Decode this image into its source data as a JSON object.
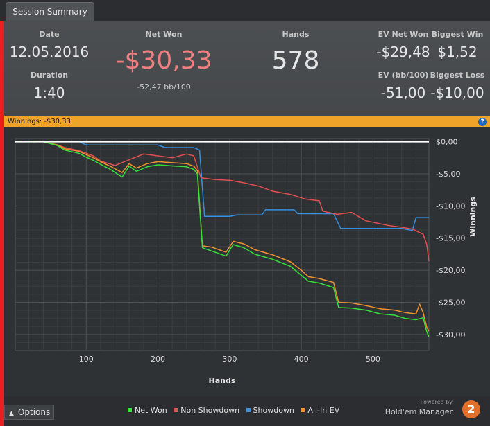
{
  "tab": {
    "label": "Session Summary"
  },
  "summary": {
    "date_label": "Date",
    "date": "12.05.2016",
    "duration_label": "Duration",
    "duration": "1:40",
    "net_won_label": "Net Won",
    "net_won": "-$30,33",
    "bb100": "-52,47 bb/100",
    "hands_label": "Hands",
    "hands": "578",
    "ev_net_won_label": "EV Net Won",
    "ev_net_won": "-$29,48",
    "ev_bb100_label": "EV (bb/100)",
    "ev_bb100": "-51,00",
    "biggest_win_label": "Biggest Win",
    "biggest_win": "$1,52",
    "biggest_loss_label": "Biggest Loss",
    "biggest_loss": "-$10,00"
  },
  "winnings_bar": {
    "text": "Winnings:  -$30,33",
    "help": "?"
  },
  "colors": {
    "net_won": "#35e03a",
    "non_showdown": "#e24f4f",
    "showdown": "#3590e0",
    "all_in_ev": "#f0922f",
    "negative": "#f08080",
    "zero_line": "#ffffff"
  },
  "chart_data": {
    "type": "line",
    "xlabel": "Hands",
    "ylabel": "Winnings",
    "xlim": [
      1,
      578
    ],
    "ylim": [
      -32.5,
      0.5
    ],
    "x_ticks": [
      "100",
      "200",
      "300",
      "400",
      "500"
    ],
    "x_tick_values": [
      100,
      200,
      300,
      400,
      500
    ],
    "y_ticks": [
      "$0,00",
      "-$5,00",
      "-$10,00",
      "-$15,00",
      "-$20,00",
      "-$25,00",
      "-$30,00"
    ],
    "y_tick_values": [
      0,
      -5,
      -10,
      -15,
      -20,
      -25,
      -30
    ],
    "grid": true,
    "legend_position": "bottom",
    "series": [
      {
        "name": "Net Won",
        "color": "#35e03a",
        "points": [
          [
            1,
            0
          ],
          [
            20,
            0.1
          ],
          [
            40,
            0
          ],
          [
            60,
            -0.6
          ],
          [
            70,
            -1.3
          ],
          [
            90,
            -1.8
          ],
          [
            100,
            -2.4
          ],
          [
            110,
            -2.9
          ],
          [
            120,
            -3.5
          ],
          [
            135,
            -4.4
          ],
          [
            150,
            -5.5
          ],
          [
            160,
            -3.8
          ],
          [
            170,
            -4.6
          ],
          [
            185,
            -3.9
          ],
          [
            200,
            -3.6
          ],
          [
            225,
            -3.8
          ],
          [
            240,
            -3.9
          ],
          [
            250,
            -4.3
          ],
          [
            255,
            -5.0
          ],
          [
            262,
            -16.5
          ],
          [
            275,
            -17.0
          ],
          [
            295,
            -17.8
          ],
          [
            305,
            -16.0
          ],
          [
            320,
            -16.5
          ],
          [
            335,
            -17.5
          ],
          [
            360,
            -18.3
          ],
          [
            385,
            -19.4
          ],
          [
            400,
            -20.8
          ],
          [
            410,
            -21.7
          ],
          [
            425,
            -22.0
          ],
          [
            445,
            -22.7
          ],
          [
            452,
            -25.8
          ],
          [
            470,
            -25.9
          ],
          [
            490,
            -26.2
          ],
          [
            510,
            -26.8
          ],
          [
            530,
            -27.0
          ],
          [
            545,
            -27.5
          ],
          [
            560,
            -27.7
          ],
          [
            570,
            -27.4
          ],
          [
            575,
            -29.6
          ],
          [
            578,
            -30.33
          ]
        ]
      },
      {
        "name": "Non Showdown",
        "color": "#e24f4f",
        "points": [
          [
            1,
            0
          ],
          [
            20,
            0.1
          ],
          [
            40,
            0
          ],
          [
            60,
            -0.5
          ],
          [
            70,
            -0.9
          ],
          [
            90,
            -1.4
          ],
          [
            110,
            -2.2
          ],
          [
            120,
            -3.0
          ],
          [
            140,
            -3.7
          ],
          [
            160,
            -2.8
          ],
          [
            180,
            -1.9
          ],
          [
            200,
            -2.2
          ],
          [
            220,
            -2.5
          ],
          [
            240,
            -1.9
          ],
          [
            250,
            -2.2
          ],
          [
            260,
            -5.6
          ],
          [
            280,
            -5.9
          ],
          [
            300,
            -6.0
          ],
          [
            320,
            -6.4
          ],
          [
            340,
            -6.9
          ],
          [
            360,
            -7.7
          ],
          [
            385,
            -8.2
          ],
          [
            405,
            -8.9
          ],
          [
            425,
            -9.2
          ],
          [
            430,
            -10.8
          ],
          [
            450,
            -11.3
          ],
          [
            470,
            -11.0
          ],
          [
            490,
            -12.3
          ],
          [
            520,
            -13.0
          ],
          [
            540,
            -13.3
          ],
          [
            555,
            -13.6
          ],
          [
            570,
            -14.4
          ],
          [
            575,
            -16.0
          ],
          [
            578,
            -18.6
          ]
        ]
      },
      {
        "name": "Showdown",
        "color": "#3590e0",
        "points": [
          [
            1,
            0
          ],
          [
            90,
            0
          ],
          [
            100,
            -0.5
          ],
          [
            200,
            -0.5
          ],
          [
            210,
            -0.9
          ],
          [
            250,
            -0.9
          ],
          [
            258,
            -1.3
          ],
          [
            265,
            -11.6
          ],
          [
            285,
            -11.6
          ],
          [
            300,
            -11.6
          ],
          [
            310,
            -11.4
          ],
          [
            345,
            -11.4
          ],
          [
            350,
            -10.6
          ],
          [
            390,
            -10.6
          ],
          [
            395,
            -11.2
          ],
          [
            445,
            -11.2
          ],
          [
            455,
            -13.5
          ],
          [
            540,
            -13.5
          ],
          [
            555,
            -13.8
          ],
          [
            560,
            -11.8
          ],
          [
            578,
            -11.8
          ]
        ]
      },
      {
        "name": "All-In EV",
        "color": "#f0922f",
        "points": [
          [
            1,
            0
          ],
          [
            20,
            0.1
          ],
          [
            40,
            0
          ],
          [
            60,
            -0.5
          ],
          [
            70,
            -1.1
          ],
          [
            90,
            -1.5
          ],
          [
            100,
            -2.0
          ],
          [
            110,
            -2.5
          ],
          [
            120,
            -3.1
          ],
          [
            135,
            -3.9
          ],
          [
            150,
            -4.8
          ],
          [
            160,
            -3.4
          ],
          [
            170,
            -4.1
          ],
          [
            185,
            -3.4
          ],
          [
            200,
            -3.1
          ],
          [
            225,
            -3.3
          ],
          [
            240,
            -3.4
          ],
          [
            250,
            -3.8
          ],
          [
            255,
            -4.5
          ],
          [
            262,
            -16.2
          ],
          [
            275,
            -16.4
          ],
          [
            295,
            -17.2
          ],
          [
            305,
            -15.5
          ],
          [
            320,
            -15.9
          ],
          [
            335,
            -16.8
          ],
          [
            360,
            -17.6
          ],
          [
            385,
            -18.7
          ],
          [
            400,
            -20.0
          ],
          [
            410,
            -21.0
          ],
          [
            425,
            -21.3
          ],
          [
            445,
            -21.9
          ],
          [
            452,
            -25.0
          ],
          [
            470,
            -25.1
          ],
          [
            490,
            -25.5
          ],
          [
            510,
            -26.0
          ],
          [
            530,
            -26.2
          ],
          [
            545,
            -26.6
          ],
          [
            560,
            -26.8
          ],
          [
            565,
            -25.3
          ],
          [
            570,
            -26.6
          ],
          [
            575,
            -28.9
          ],
          [
            578,
            -29.48
          ]
        ]
      }
    ]
  },
  "footer": {
    "options_label": "Options",
    "powered_by": "Powered by",
    "brand": "Hold'em Manager",
    "brand_logo": "2",
    "legend_items": [
      "Net Won",
      "Non Showdown",
      "Showdown",
      "All-In EV"
    ]
  }
}
